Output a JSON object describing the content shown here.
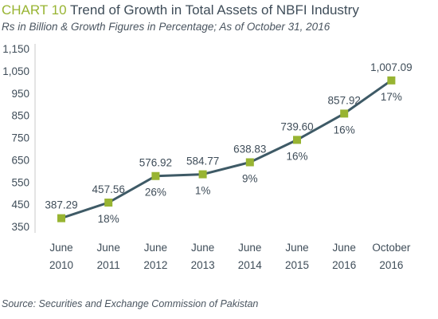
{
  "header": {
    "chart_number": "CHART 10",
    "title": "Trend of Growth in Total Assets of NBFI Industry",
    "subtitle": "Rs in Billion & Growth Figures in Percentage; As of October 31, 2016"
  },
  "footer": {
    "source": "Source: Securities and Exchange Commission of Pakistan"
  },
  "colors": {
    "line": "#3e5a66",
    "marker": "#98b432",
    "accent": "#98b432",
    "text": "#3f4d59",
    "axis": "#c8c8c8"
  },
  "chart_data": {
    "type": "line",
    "categories": [
      [
        "June",
        "2010"
      ],
      [
        "June",
        "2011"
      ],
      [
        "June",
        "2012"
      ],
      [
        "June",
        "2013"
      ],
      [
        "June",
        "2014"
      ],
      [
        "June",
        "2015"
      ],
      [
        "June",
        "2016"
      ],
      [
        "October",
        "2016"
      ]
    ],
    "values": [
      387.29,
      457.56,
      576.92,
      584.77,
      638.83,
      739.6,
      857.92,
      1007.09
    ],
    "value_labels": [
      "387.29",
      "457.56",
      "576.92",
      "584.77",
      "638.83",
      "739.60",
      "857.92",
      "1,007.09"
    ],
    "growth_labels": [
      "",
      "18%",
      "26%",
      "1%",
      "9%",
      "16%",
      "16%",
      "17%"
    ],
    "yticks": [
      "350",
      "450",
      "550",
      "650",
      "750",
      "850",
      "950",
      "1,050",
      "1,150"
    ],
    "ylim": [
      350,
      1150
    ],
    "grid": false,
    "legend": "none"
  }
}
